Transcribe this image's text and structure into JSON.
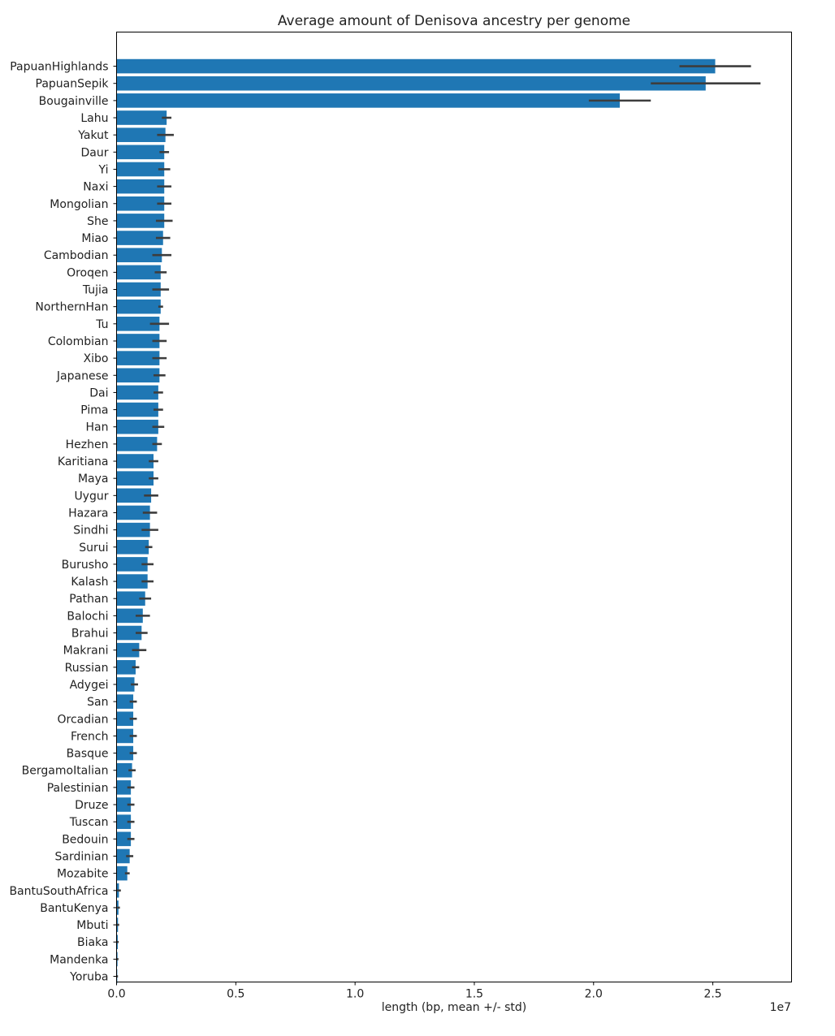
{
  "chart_data": {
    "type": "bar",
    "orientation": "horizontal",
    "title": "Average amount of Denisova ancestry per genome",
    "xlabel": "length (bp, mean +/- std)",
    "x_offset_label": "1e7",
    "xlim": [
      0,
      2.83
    ],
    "x_scale_factor": 10000000,
    "x_ticks": [
      0.0,
      0.5,
      1.0,
      1.5,
      2.0,
      2.5
    ],
    "x_tick_labels": [
      "0.0",
      "0.5",
      "1.0",
      "1.5",
      "2.0",
      "2.5"
    ],
    "bar_color": "#1f77b4",
    "errorbar_color": "#3d3d3d",
    "grid": false,
    "categories": [
      "PapuanHighlands",
      "PapuanSepik",
      "Bougainville",
      "Lahu",
      "Yakut",
      "Daur",
      "Yi",
      "Naxi",
      "Mongolian",
      "She",
      "Miao",
      "Cambodian",
      "Oroqen",
      "Tujia",
      "NorthernHan",
      "Tu",
      "Colombian",
      "Xibo",
      "Japanese",
      "Dai",
      "Pima",
      "Han",
      "Hezhen",
      "Karitiana",
      "Maya",
      "Uygur",
      "Hazara",
      "Sindhi",
      "Surui",
      "Burusho",
      "Kalash",
      "Pathan",
      "Balochi",
      "Brahui",
      "Makrani",
      "Russian",
      "Adygei",
      "San",
      "Orcadian",
      "French",
      "Basque",
      "BergamoItalian",
      "Palestinian",
      "Druze",
      "Tuscan",
      "Bedouin",
      "Sardinian",
      "Mozabite",
      "BantuSouthAfrica",
      "BantuKenya",
      "Mbuti",
      "Biaka",
      "Mandenka",
      "Yoruba"
    ],
    "values": [
      2.51,
      2.47,
      2.11,
      0.21,
      0.205,
      0.2,
      0.2,
      0.2,
      0.2,
      0.2,
      0.195,
      0.19,
      0.185,
      0.185,
      0.185,
      0.18,
      0.18,
      0.18,
      0.18,
      0.175,
      0.175,
      0.175,
      0.17,
      0.155,
      0.155,
      0.145,
      0.14,
      0.14,
      0.135,
      0.13,
      0.13,
      0.12,
      0.11,
      0.105,
      0.095,
      0.08,
      0.075,
      0.07,
      0.07,
      0.07,
      0.07,
      0.065,
      0.06,
      0.06,
      0.06,
      0.06,
      0.055,
      0.045,
      0.01,
      0.008,
      0.006,
      0.005,
      0.004,
      0.003
    ],
    "errors": [
      0.15,
      0.23,
      0.13,
      0.02,
      0.035,
      0.02,
      0.025,
      0.03,
      0.03,
      0.035,
      0.03,
      0.04,
      0.025,
      0.035,
      0.01,
      0.04,
      0.03,
      0.03,
      0.025,
      0.02,
      0.02,
      0.025,
      0.02,
      0.02,
      0.02,
      0.03,
      0.03,
      0.035,
      0.015,
      0.025,
      0.025,
      0.025,
      0.03,
      0.025,
      0.03,
      0.015,
      0.015,
      0.015,
      0.015,
      0.015,
      0.015,
      0.015,
      0.015,
      0.015,
      0.015,
      0.015,
      0.015,
      0.01,
      0.008,
      0.006,
      0.005,
      0.004,
      0.004,
      0.003
    ]
  }
}
